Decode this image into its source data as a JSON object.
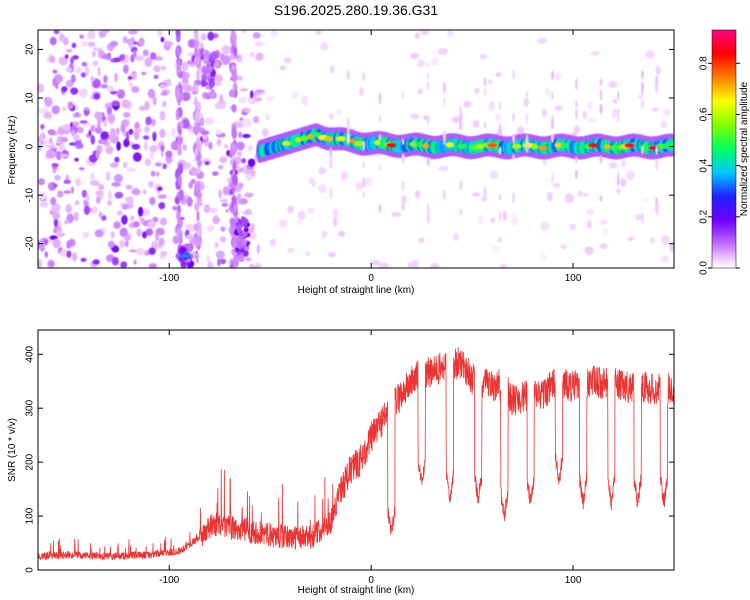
{
  "title": "S196.2025.280.19.36.G31",
  "chart_data": [
    {
      "type": "heatmap",
      "xlabel": "Height of straight line (km)",
      "ylabel": "Frequency (Hz)",
      "xlim": [
        -165,
        150
      ],
      "ylim": [
        -25,
        24
      ],
      "xticks": [
        -100,
        0,
        100
      ],
      "yticks": [
        -20,
        -10,
        0,
        10,
        20
      ],
      "features": {
        "noise_region_km": [
          -165,
          -55
        ],
        "carrier_onset_km": -55,
        "carrier_frequency_hz": 0,
        "carrier_wobble_peak": {
          "x": -27,
          "y": 2.5
        },
        "low_branch": {
          "x": -92,
          "y": -22.5
        },
        "high_branch": {
          "x": -80,
          "y": 15
        }
      },
      "colorbar": {
        "label": "Normalized spectral amplitude",
        "range": [
          0,
          0.93
        ],
        "ticks": [
          0.0,
          0.2,
          0.4,
          0.6,
          0.8
        ],
        "tick_labels": [
          "0.0",
          "0.2",
          "0.4",
          "0.6",
          "0.8"
        ],
        "colormap": [
          "#ffffff",
          "#f0c8ff",
          "#c070ff",
          "#7000ff",
          "#2020ff",
          "#00c8ff",
          "#00ff60",
          "#80ff00",
          "#ffff00",
          "#ff8000",
          "#ff0000",
          "#ff0080"
        ]
      }
    },
    {
      "type": "line",
      "xlabel": "Height of straight line (km)",
      "ylabel": "SNR (10 * v/v)",
      "xlim": [
        -165,
        150
      ],
      "ylim": [
        0,
        445
      ],
      "xticks": [
        -100,
        0,
        100
      ],
      "yticks": [
        0,
        100,
        200,
        300,
        400
      ],
      "color": "#ee3333",
      "series": [
        {
          "name": "SNR",
          "x": [
            -165,
            -150,
            -130,
            -110,
            -95,
            -85,
            -78,
            -70,
            -60,
            -50,
            -40,
            -30,
            -20,
            -15,
            -10,
            -5,
            0,
            5,
            10,
            15,
            20,
            25,
            30,
            35,
            40,
            45,
            50,
            55,
            60,
            65,
            70,
            75,
            80,
            85,
            90,
            95,
            100,
            105,
            110,
            115,
            120,
            125,
            130,
            135,
            140,
            145,
            150
          ],
          "values": [
            25,
            28,
            25,
            28,
            35,
            60,
            85,
            78,
            72,
            65,
            60,
            60,
            90,
            150,
            185,
            205,
            245,
            275,
            305,
            325,
            350,
            365,
            365,
            375,
            380,
            385,
            355,
            345,
            340,
            345,
            315,
            320,
            325,
            325,
            345,
            345,
            340,
            345,
            350,
            345,
            345,
            340,
            340,
            340,
            335,
            335,
            335
          ]
        }
      ],
      "dropouts": [
        {
          "x": 10,
          "min": 50
        },
        {
          "x": 25,
          "min": 145
        },
        {
          "x": 39,
          "min": 120
        },
        {
          "x": 53,
          "min": 115
        },
        {
          "x": 66,
          "min": 85
        },
        {
          "x": 79,
          "min": 110
        },
        {
          "x": 93,
          "min": 150
        },
        {
          "x": 105,
          "min": 110
        },
        {
          "x": 119,
          "min": 110
        },
        {
          "x": 132,
          "min": 110
        },
        {
          "x": 145,
          "min": 110
        }
      ]
    }
  ]
}
